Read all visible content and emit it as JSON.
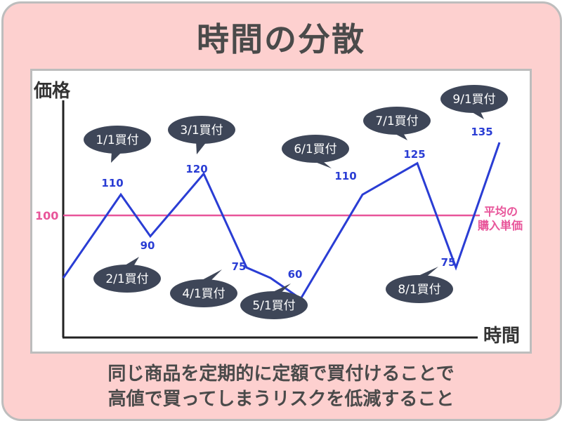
{
  "title": "時間の分散",
  "caption": {
    "line1": "同じ商品を定期的に定額で買付けることで",
    "line2": "高値で買ってしまうリスクを低減すること"
  },
  "colors": {
    "background": "#fdd0cf",
    "price_line": "#2a3dd4",
    "average_line": "#e8559a",
    "value_label": "#2a3dd4",
    "callout": "#3e4658",
    "text": "#4a4a4a"
  },
  "chart_data": {
    "type": "line",
    "xlabel": "時間",
    "ylabel": "価格",
    "ylim": [
      30,
      170
    ],
    "grid": false,
    "series": [
      {
        "values": [
          70,
          110,
          90,
          120,
          75,
          70,
          60,
          110,
          125,
          75,
          135
        ],
        "color": "#2a3dd4"
      }
    ],
    "average": {
      "value": 100,
      "label": "100",
      "text_line1": "平均の",
      "text_line2": "購入単価"
    },
    "purchases": [
      {
        "index": 1,
        "date": "1/1買付",
        "value": 110,
        "value_label": "110"
      },
      {
        "index": 2,
        "date": "2/1買付",
        "value": 90,
        "value_label": "90"
      },
      {
        "index": 3,
        "date": "3/1買付",
        "value": 120,
        "value_label": "120"
      },
      {
        "index": 4,
        "date": "4/1買付",
        "value": 75,
        "value_label": "75"
      },
      {
        "index": 6,
        "date": "5/1買付",
        "value": 60,
        "value_label": "60"
      },
      {
        "index": 7,
        "date": "6/1買付",
        "value": 110,
        "value_label": "110"
      },
      {
        "index": 8,
        "date": "7/1買付",
        "value": 125,
        "value_label": "125"
      },
      {
        "index": 9,
        "date": "8/1買付",
        "value": 75,
        "value_label": "75"
      },
      {
        "index": 10,
        "date": "9/1買付",
        "value": 135,
        "value_label": "135"
      }
    ]
  }
}
